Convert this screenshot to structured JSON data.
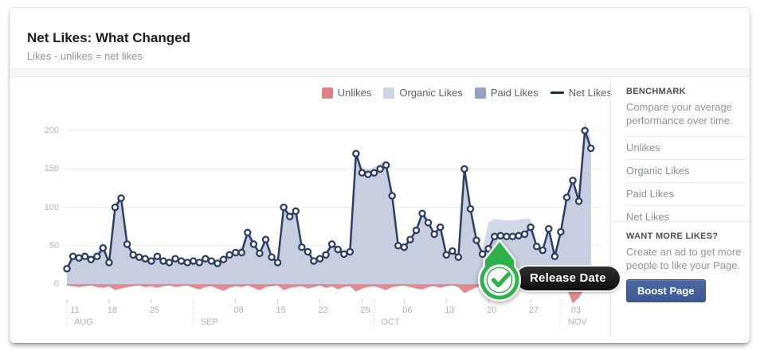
{
  "header": {
    "title": "Net Likes: What Changed",
    "subtitle": "Likes - unlikes = net likes"
  },
  "legend": [
    {
      "label": "Unlikes",
      "color": "#dd8187",
      "type": "square"
    },
    {
      "label": "Organic Likes",
      "color": "#ccd4e3",
      "type": "square"
    },
    {
      "label": "Paid Likes",
      "color": "#93a2c4",
      "type": "square"
    },
    {
      "label": "Net Likes",
      "color": "#1d2b4e",
      "type": "dash"
    }
  ],
  "annotation": {
    "label": "Release Date",
    "icon": "green-checkmark-pin",
    "day_index": 71
  },
  "chart_data": {
    "type": "area",
    "title": "Net Likes: What Changed",
    "ylim": [
      -30,
      215
    ],
    "y_ticks": [
      0,
      50,
      100,
      150,
      200
    ],
    "grid": true,
    "legend_position": "top-right",
    "x_unit": "day",
    "x_week_ticks": [
      {
        "label": "11",
        "day": 0
      },
      {
        "label": "18",
        "day": 7
      },
      {
        "label": "25",
        "day": 14
      },
      {
        "label": "08",
        "day": 28
      },
      {
        "label": "15",
        "day": 35
      },
      {
        "label": "22",
        "day": 42
      },
      {
        "label": "29",
        "day": 49
      },
      {
        "label": "06",
        "day": 56
      },
      {
        "label": "13",
        "day": 63
      },
      {
        "label": "20",
        "day": 70
      },
      {
        "label": "27",
        "day": 77
      },
      {
        "label": "03",
        "day": 84
      }
    ],
    "x_month_ticks": [
      {
        "label": "AUG",
        "day": 0
      },
      {
        "label": "SEP",
        "day": 21
      },
      {
        "label": "OCT",
        "day": 51
      },
      {
        "label": "NOV",
        "day": 82
      }
    ],
    "series": [
      {
        "name": "Net Likes",
        "style": "line-markers",
        "values": [
          20,
          36,
          34,
          36,
          32,
          36,
          47,
          28,
          100,
          112,
          52,
          38,
          35,
          33,
          30,
          36,
          30,
          28,
          33,
          30,
          28,
          30,
          28,
          33,
          30,
          27,
          32,
          38,
          41,
          41,
          67,
          52,
          40,
          58,
          35,
          28,
          100,
          88,
          95,
          48,
          42,
          30,
          33,
          38,
          52,
          45,
          39,
          42,
          170,
          145,
          143,
          145,
          150,
          155,
          115,
          50,
          48,
          58,
          70,
          92,
          80,
          65,
          74,
          38,
          43,
          35,
          150,
          98,
          57,
          39,
          46,
          62,
          63,
          62,
          62,
          63,
          65,
          74,
          49,
          44,
          72,
          36,
          68,
          113,
          135,
          108,
          200,
          177
        ]
      },
      {
        "name": "Organic + Paid Likes (total area)",
        "style": "area",
        "values": [
          23,
          39,
          37,
          39,
          35,
          39,
          55,
          31,
          105,
          116,
          55,
          41,
          38,
          36,
          33,
          39,
          33,
          31,
          36,
          33,
          31,
          33,
          31,
          36,
          33,
          30,
          35,
          41,
          44,
          49,
          75,
          58,
          43,
          61,
          38,
          31,
          104,
          91,
          98,
          51,
          45,
          33,
          36,
          41,
          60,
          48,
          42,
          45,
          178,
          152,
          150,
          152,
          157,
          162,
          120,
          53,
          51,
          61,
          73,
          97,
          85,
          68,
          77,
          41,
          46,
          38,
          155,
          101,
          60,
          45,
          80,
          85,
          84,
          83,
          83,
          84,
          85,
          85,
          52,
          47,
          75,
          39,
          71,
          116,
          138,
          111,
          212,
          190
        ]
      },
      {
        "name": "Unlikes",
        "style": "area-below-zero",
        "values": [
          -2,
          -3,
          -4,
          -3,
          -2,
          -4,
          -5,
          -3,
          -8,
          -6,
          -4,
          -3,
          -2,
          -4,
          -3,
          -5,
          -3,
          -2,
          -4,
          -3,
          -2,
          -5,
          -7,
          -4,
          -3,
          -6,
          -9,
          -5,
          -3,
          -4,
          -2,
          -5,
          -8,
          -4,
          -3,
          -2,
          -8,
          -5,
          -4,
          -3,
          -6,
          -4,
          -2,
          -5,
          -3,
          -7,
          -4,
          -3,
          -10,
          -6,
          -4,
          -3,
          -5,
          -8,
          -4,
          -3,
          -2,
          -4,
          -6,
          -7,
          -4,
          -3,
          -5,
          -3,
          -2,
          -4,
          -12,
          -8,
          -4,
          -3,
          -5,
          -3,
          -2,
          -4,
          -8,
          -5,
          -3,
          -4,
          -3,
          -2,
          -4,
          -3,
          -4,
          -6,
          -25,
          -18,
          -6,
          -4
        ]
      }
    ]
  },
  "colors": {
    "net_line": "#2e3f63",
    "net_fill": "#c6cee0",
    "total_fill": "#d0d7e5",
    "unlikes_fill": "#e18a8f",
    "gridline": "#ecedf0",
    "baseline": "#e0e2e6",
    "axis_tick": "#c6c9cf",
    "pin_green": "#2db24b",
    "tooltip_bg": "#1b1b1b",
    "boost_blue": "#4c68a1"
  },
  "sidebar": {
    "benchmark": {
      "heading": "BENCHMARK",
      "description": "Compare your average performance over time.",
      "items": [
        "Unlikes",
        "Organic Likes",
        "Paid Likes",
        "Net Likes"
      ]
    },
    "promo": {
      "heading": "WANT MORE LIKES?",
      "description": "Create an ad to get more people to like your Page.",
      "button_label": "Boost Page"
    }
  }
}
